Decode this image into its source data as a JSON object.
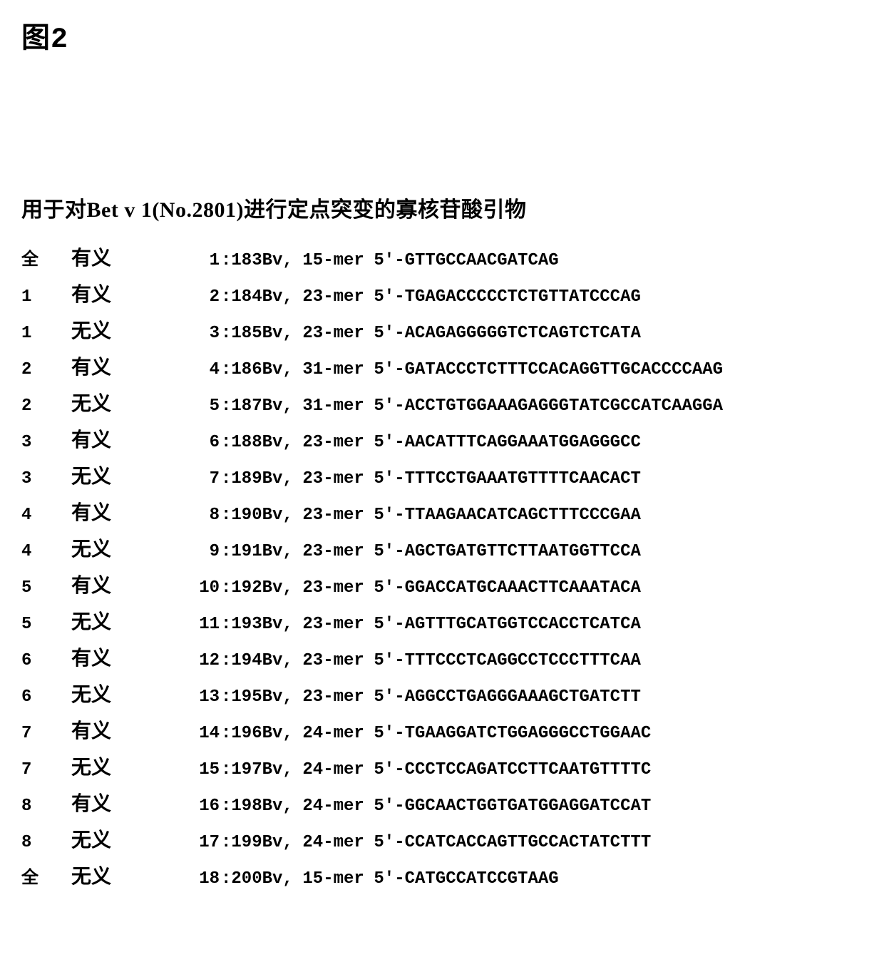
{
  "figure_title": "图2",
  "sub_title": "用于对Bet v 1(No.2801)进行定点突变的寡核苷酸引物",
  "colors": {
    "text": "#000000",
    "background": "#ffffff"
  },
  "typography": {
    "title_fontsize_pt": 30,
    "subtitle_fontsize_pt": 22,
    "row_fontsize_pt": 18,
    "font_family_mono": "Courier New",
    "font_family_cjk": "SimSun",
    "font_weight": "bold"
  },
  "table": {
    "type": "table",
    "columns": [
      "group",
      "sense",
      "index",
      "name",
      "length",
      "sequence"
    ],
    "rows": [
      {
        "group": "全",
        "sense": "有义",
        "idx": "1",
        "idx_suffix": ": ",
        "name": "183Bv,",
        "len": "15-mer",
        "seq": "5'-GTTGCCAACGATCAG"
      },
      {
        "group": "1",
        "sense": "有义",
        "idx": "2",
        "idx_suffix": ": ",
        "name": "184Bv,",
        "len": "23-mer",
        "seq": "5'-TGAGACCCCCTCTGTTATCCCAG"
      },
      {
        "group": "1",
        "sense": "无义",
        "idx": "3",
        "idx_suffix": ": ",
        "name": "185Bv,",
        "len": "23-mer",
        "seq": "5'-ACAGAGGGGGTCTCAGTCTCATA"
      },
      {
        "group": "2",
        "sense": "有义",
        "idx": "4",
        "idx_suffix": ":",
        "name": "186Bv,",
        "len": "31-mer",
        "seq": "5'-GATACCCTCTTTCCACAGGTTGCACCCCAAG"
      },
      {
        "group": "2",
        "sense": "无义",
        "idx": "5",
        "idx_suffix": ": ",
        "name": "187Bv,",
        "len": "31-mer",
        "seq": "5'-ACCTGTGGAAAGAGGGTATCGCCATCAAGGA"
      },
      {
        "group": "3",
        "sense": "有义",
        "idx": "6",
        "idx_suffix": ": ",
        "name": "188Bv,",
        "len": "23-mer",
        "seq": "5'-AACATTTCAGGAAATGGAGGGCC"
      },
      {
        "group": "3",
        "sense": "无义",
        "idx": "7",
        "idx_suffix": ": ",
        "name": "189Bv,",
        "len": "23-mer",
        "seq": "5'-TTTCCTGAAATGTTTTCAACACT"
      },
      {
        "group": "4",
        "sense": "有义",
        "idx": "8",
        "idx_suffix": ": ",
        "name": "190Bv,",
        "len": "23-mer",
        "seq": "5'-TTAAGAACATCAGCTTTCCCGAA"
      },
      {
        "group": "4",
        "sense": "无义",
        "idx": "9",
        "idx_suffix": ": ",
        "name": "191Bv,",
        "len": "23-mer",
        "seq": "5'-AGCTGATGTTCTTAATGGTTCCA"
      },
      {
        "group": "5",
        "sense": "有义",
        "idx": "10",
        "idx_suffix": ": ",
        "name": "192Bv,",
        "len": "23-mer",
        "seq": "5'-GGACCATGCAAACTTCAAATACA"
      },
      {
        "group": "5",
        "sense": "无义",
        "idx": "11",
        "idx_suffix": ": ",
        "name": "193Bv,",
        "len": "23-mer",
        "seq": "5'-AGTTTGCATGGTCCACCTCATCA"
      },
      {
        "group": "6",
        "sense": "有义",
        "idx": "12",
        "idx_suffix": ": ",
        "name": "194Bv,",
        "len": "23-mer",
        "seq": "5'-TTTCCCTCAGGCCTCCCTTTCAA"
      },
      {
        "group": "6",
        "sense": "无义",
        "idx": "13",
        "idx_suffix": ": ",
        "name": "195Bv,",
        "len": "23-mer",
        "seq": "5'-AGGCCTGAGGGAAAGCTGATCTT"
      },
      {
        "group": "7",
        "sense": "有义",
        "idx": "14",
        "idx_suffix": ": ",
        "name": "196Bv,",
        "len": "24-mer",
        "seq": "5'-TGAAGGATCTGGAGGGCCTGGAAC"
      },
      {
        "group": "7",
        "sense": "无义",
        "idx": "15",
        "idx_suffix": ": ",
        "name": "197Bv,",
        "len": "24-mer",
        "seq": "5'-CCCTCCAGATCCTTCAATGTTTTC"
      },
      {
        "group": "8",
        "sense": "有义",
        "idx": "16",
        "idx_suffix": ": ",
        "name": "198Bv,",
        "len": "24-mer",
        "seq": "5'-GGCAACTGGTGATGGAGGATCCAT"
      },
      {
        "group": "8",
        "sense": "无义",
        "idx": "17",
        "idx_suffix": ": ",
        "name": "199Bv,",
        "len": "24-mer",
        "seq": "5'-CCATCACCAGTTGCCACTATCTTT"
      },
      {
        "group": "全",
        "sense": "无义",
        "idx": "18",
        "idx_suffix": ": ",
        "name": "200Bv,",
        "len": "15-mer",
        "seq": "5'-CATGCCATCCGTAAG"
      }
    ]
  }
}
